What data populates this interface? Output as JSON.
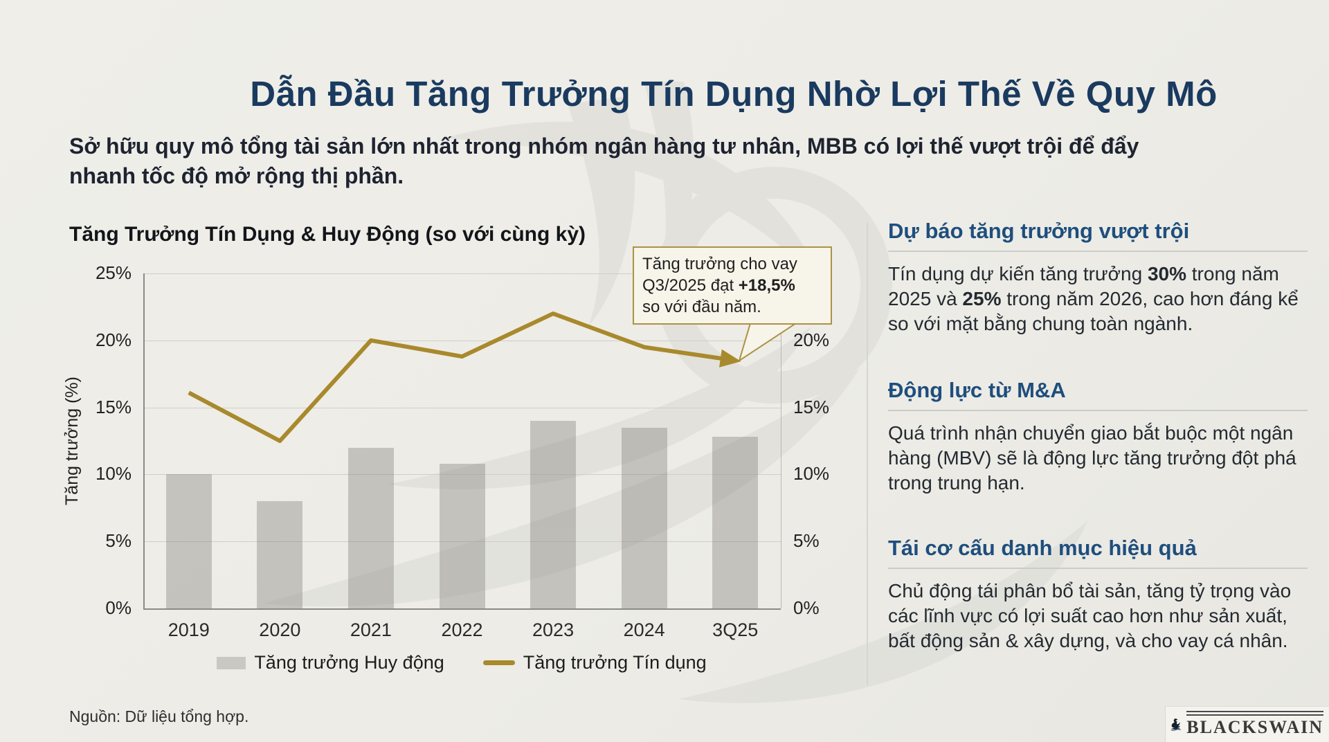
{
  "page": {
    "title": "Dẫn Đầu Tăng Trưởng Tín Dụng Nhờ Lợi Thế Về Quy Mô",
    "subtitle": "Sở hữu quy mô tổng tài sản lớn nhất trong nhóm ngân hàng tư nhân, MBB có lợi thế vượt trội để đẩy nhanh tốc độ mở rộng thị phần.",
    "source_note": "Nguồn: Dữ liệu tổng hợp."
  },
  "chart": {
    "title": "Tăng Trưởng Tín Dụng & Huy Động (so với cùng kỳ)",
    "ylabel": "Tăng trưởng (%)",
    "annotation": {
      "line1": "Tăng trưởng cho vay",
      "line2_pre": "Q3/2025 đạt ",
      "line2_bold": "+18,5%",
      "line3": "so với đầu năm."
    }
  },
  "chart_data": {
    "type": "combo",
    "categories": [
      "2019",
      "2020",
      "2021",
      "2022",
      "2023",
      "2024",
      "3Q25"
    ],
    "series": [
      {
        "name": "Tăng trưởng Huy động",
        "type": "bar",
        "color": "#c9c8c3",
        "values": [
          10,
          8,
          12,
          10.8,
          14,
          13.5,
          12.8
        ]
      },
      {
        "name": "Tăng trưởng Tín dụng",
        "type": "line",
        "color": "#a8892c",
        "values": [
          16.1,
          12.5,
          20,
          18.8,
          22,
          19.5,
          18.5
        ]
      }
    ],
    "title": "Tăng Trưởng Tín Dụng & Huy Động (so với cùng kỳ)",
    "xlabel": "",
    "ylabel": "Tăng trưởng (%)",
    "ylim": [
      0,
      25
    ],
    "yticks_left": [
      "25%",
      "20%",
      "15%",
      "10%",
      "5%",
      "0%"
    ],
    "yticks_right": [
      "20%",
      "15%",
      "10%",
      "5%",
      "0%"
    ],
    "grid": true,
    "legend_position": "bottom"
  },
  "sections": [
    {
      "heading": "Dự báo tăng trưởng vượt trội",
      "body_segments": [
        {
          "t": "Tín dụng dự kiến tăng trưởng "
        },
        {
          "t": "30%",
          "b": true
        },
        {
          "t": " trong năm 2025 và "
        },
        {
          "t": "25%",
          "b": true
        },
        {
          "t": " trong năm 2026, cao hơn đáng kể so với mặt bằng chung toàn ngành."
        }
      ]
    },
    {
      "heading": "Động lực từ M&A",
      "body": "Quá trình nhận chuyển giao bắt buộc một ngân hàng (MBV) sẽ là động lực tăng trưởng đột phá trong trung hạn."
    },
    {
      "heading": "Tái cơ cấu danh mục hiệu quả",
      "body": "Chủ động tái phân bổ tài sản, tăng tỷ trọng vào các lĩnh vực có lợi suất cao hơn như sản xuất, bất động sản & xây dựng, và cho vay cá nhân."
    }
  ],
  "logo": {
    "brand": "BLACKSWAIN"
  },
  "colors": {
    "background": "#edece7",
    "title_navy": "#1a3a5f",
    "heading_blue": "#1e4e7d",
    "accent_gold": "#a8892c",
    "annotation_border_gold": "#ab9245",
    "bar_gray": "#c9c8c3",
    "gridline_gray": "#cfcec8"
  }
}
